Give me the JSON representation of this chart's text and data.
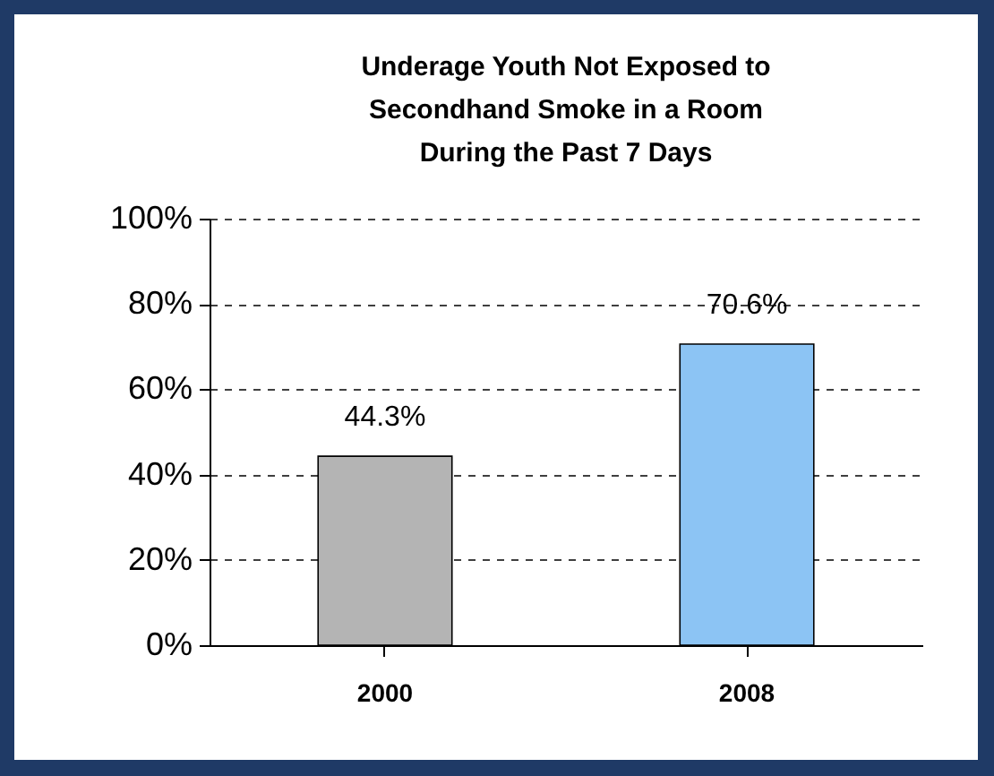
{
  "chart_data": {
    "type": "bar",
    "title": "Underage Youth Not Exposed to Secondhand Smoke in a Room During the Past 7 Days",
    "categories": [
      "2000",
      "2008"
    ],
    "values": [
      44.3,
      70.6
    ],
    "colors": [
      "#b4b4b4",
      "#8cc4f4"
    ],
    "value_labels": [
      "44.3%",
      "70.6%"
    ],
    "ylim": [
      0,
      100
    ],
    "yticks": [
      {
        "value": 0,
        "label": "0%"
      },
      {
        "value": 20,
        "label": "20%"
      },
      {
        "value": 40,
        "label": "40%"
      },
      {
        "value": 60,
        "label": "60%"
      },
      {
        "value": 80,
        "label": "80%"
      },
      {
        "value": 100,
        "label": "100%"
      }
    ],
    "grid": "y",
    "line_style": "dashed"
  }
}
